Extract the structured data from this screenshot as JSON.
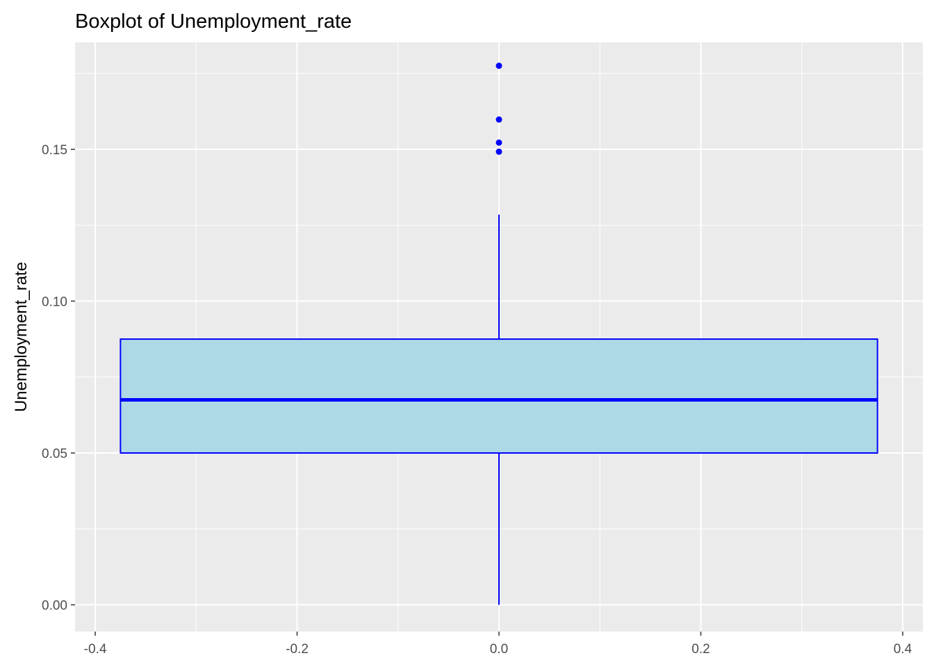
{
  "chart_data": {
    "type": "boxplot",
    "title": "Boxplot of Unemployment_rate",
    "xlabel": "",
    "ylabel": "Unemployment_rate",
    "xlim": [
      -0.42,
      0.42
    ],
    "ylim": [
      -0.0088,
      0.1852
    ],
    "x_ticks": [
      -0.4,
      -0.2,
      0.0,
      0.2,
      0.4
    ],
    "x_tick_labels": [
      "-0.4",
      "-0.2",
      "0.0",
      "0.2",
      "0.4"
    ],
    "y_ticks": [
      0.0,
      0.05,
      0.1,
      0.15
    ],
    "y_tick_labels": [
      "0.00",
      "0.05",
      "0.10",
      "0.15"
    ],
    "grid": true,
    "box": {
      "x_center": 0.0,
      "x_min": -0.375,
      "x_max": 0.375,
      "q1": 0.05,
      "median": 0.0675,
      "q3": 0.0875,
      "whisker_low": 0.0,
      "whisker_high": 0.1285
    },
    "outliers": [
      0.1775,
      0.1598,
      0.1522,
      0.1492
    ],
    "colors": {
      "panel_background": "#EBEBEB",
      "grid": "#FFFFFF",
      "box_fill": "#ADD8E6",
      "box_line": "#0000FF",
      "outlier": "#0000FF",
      "tick_text": "#4D4D4D",
      "tick_mark": "#333333"
    }
  }
}
